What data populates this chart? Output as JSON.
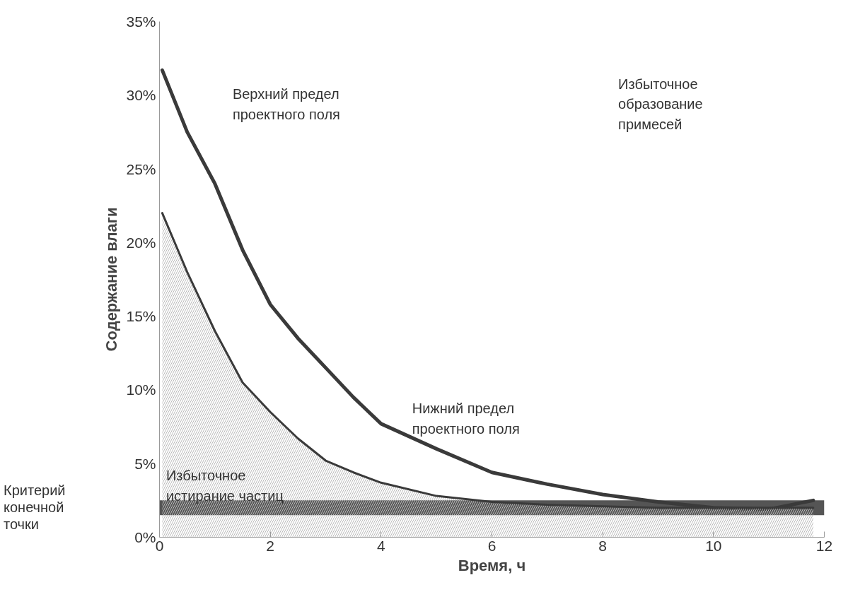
{
  "chart_data": {
    "type": "line",
    "xlabel": "Время, ч",
    "ylabel": "Содержание влаги",
    "xlim": [
      0,
      12
    ],
    "ylim": [
      0,
      35
    ],
    "xticks": [
      0,
      2,
      4,
      6,
      8,
      10,
      12
    ],
    "yticks": [
      {
        "value": 0,
        "label": "0%"
      },
      {
        "value": 5,
        "label": "5%"
      },
      {
        "value": 10,
        "label": "10%"
      },
      {
        "value": 15,
        "label": "15%"
      },
      {
        "value": 20,
        "label": "20%"
      },
      {
        "value": 25,
        "label": "25%"
      },
      {
        "value": 30,
        "label": "30%"
      },
      {
        "value": 35,
        "label": "35%"
      }
    ],
    "grid": false,
    "line_style": "solid",
    "series": [
      {
        "color": "#3a3a3a",
        "x": [
          0.05,
          0.5,
          1,
          1.5,
          2,
          2.5,
          3,
          3.5,
          4,
          5,
          6,
          7,
          8,
          9,
          10,
          11,
          11.8
        ],
        "values": [
          31.7,
          27.5,
          24,
          19.5,
          15.8,
          13.5,
          11.5,
          9.5,
          7.7,
          6,
          4.4,
          3.6,
          2.9,
          2.4,
          2,
          1.9,
          2.5
        ]
      },
      {
        "type": "area",
        "color": "#3a3a3a",
        "x": [
          0.05,
          0.5,
          1,
          1.5,
          2,
          2.5,
          3,
          3.5,
          4,
          5,
          6,
          7,
          8,
          9,
          10,
          11,
          11.8
        ],
        "values": [
          22,
          18,
          14,
          10.5,
          8.5,
          6.7,
          5.2,
          4.4,
          3.7,
          2.8,
          2.4,
          2.2,
          2.1,
          2,
          2,
          2,
          2
        ]
      }
    ],
    "bands": [
      {
        "axis": "y",
        "from": 1.5,
        "to": 2.5,
        "label": "Критерий\nконечной\nточки",
        "color": "#555555"
      }
    ],
    "annotations": [
      "Верхний предел\nпроектного поля",
      "Нижний предел\nпроектного поля",
      "Избыточное\nистирание частиц",
      "Избыточное\nобразование\nпримесей"
    ]
  }
}
